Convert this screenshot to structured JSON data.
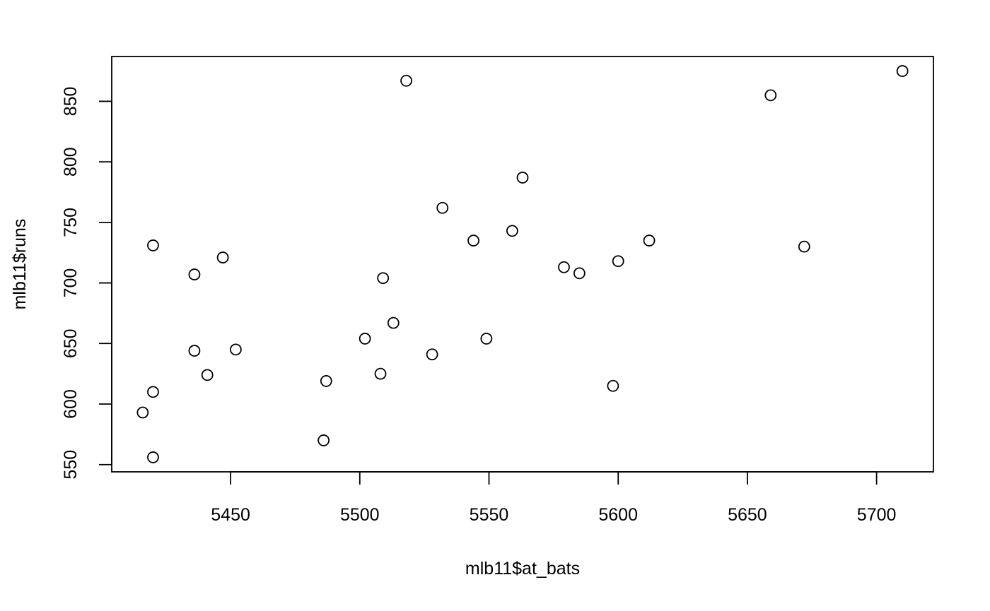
{
  "chart_data": {
    "type": "scatter",
    "title": "",
    "xlabel": "mlb11$at_bats",
    "ylabel": "mlb11$runs",
    "xlim": [
      5404,
      5722
    ],
    "ylim": [
      544,
      887
    ],
    "xticks": [
      "5450",
      "5500",
      "5550",
      "5600",
      "5650",
      "5700"
    ],
    "yticks": [
      "550",
      "600",
      "650",
      "700",
      "750",
      "800",
      "850"
    ],
    "grid": false,
    "marker": "open-circle",
    "points": [
      {
        "x": 5710,
        "y": 875
      },
      {
        "x": 5659,
        "y": 855
      },
      {
        "x": 5518,
        "y": 867
      },
      {
        "x": 5563,
        "y": 787
      },
      {
        "x": 5532,
        "y": 762
      },
      {
        "x": 5559,
        "y": 743
      },
      {
        "x": 5544,
        "y": 735
      },
      {
        "x": 5612,
        "y": 735
      },
      {
        "x": 5672,
        "y": 730
      },
      {
        "x": 5420,
        "y": 731
      },
      {
        "x": 5447,
        "y": 721
      },
      {
        "x": 5600,
        "y": 718
      },
      {
        "x": 5579,
        "y": 713
      },
      {
        "x": 5585,
        "y": 708
      },
      {
        "x": 5436,
        "y": 707
      },
      {
        "x": 5509,
        "y": 704
      },
      {
        "x": 5513,
        "y": 667
      },
      {
        "x": 5502,
        "y": 654
      },
      {
        "x": 5549,
        "y": 654
      },
      {
        "x": 5452,
        "y": 645
      },
      {
        "x": 5436,
        "y": 644
      },
      {
        "x": 5528,
        "y": 641
      },
      {
        "x": 5508,
        "y": 625
      },
      {
        "x": 5441,
        "y": 624
      },
      {
        "x": 5487,
        "y": 619
      },
      {
        "x": 5598,
        "y": 615
      },
      {
        "x": 5420,
        "y": 610
      },
      {
        "x": 5416,
        "y": 593
      },
      {
        "x": 5486,
        "y": 570
      },
      {
        "x": 5420,
        "y": 556
      }
    ]
  }
}
